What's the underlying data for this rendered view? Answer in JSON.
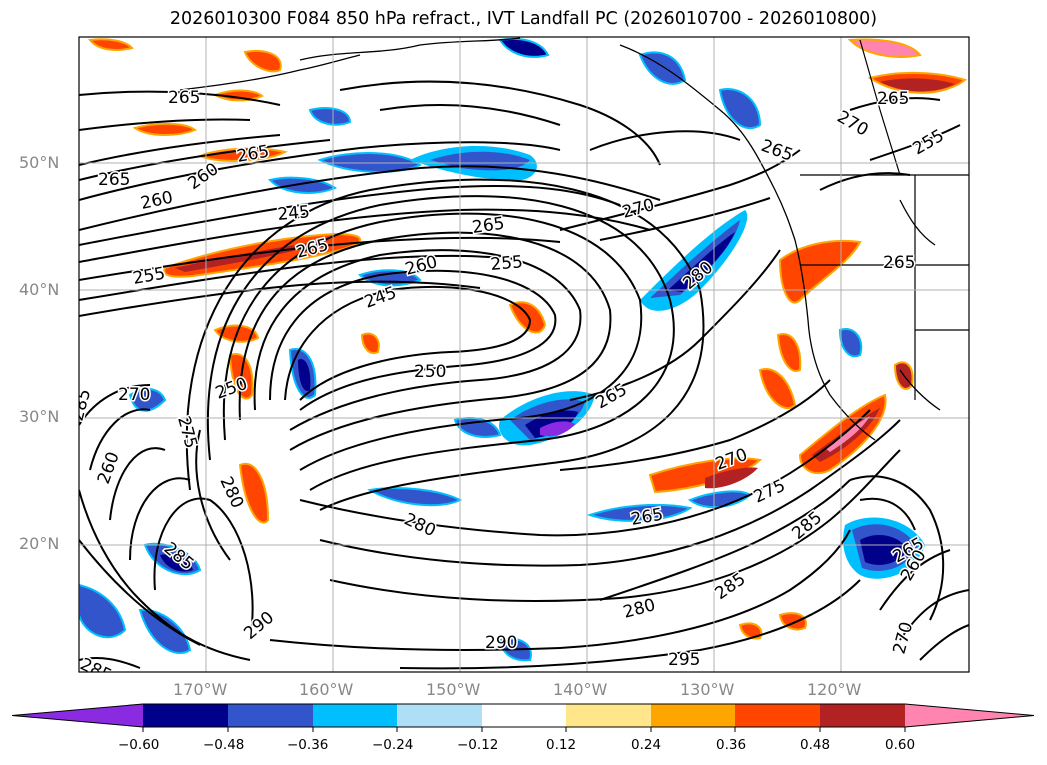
{
  "title": "2026010300 F084 850 hPa refract., IVT Landfall PC (2026010700 - 2026010800)",
  "lat_labels": [
    "50°N",
    "40°N",
    "30°N",
    "20°N"
  ],
  "lon_labels": [
    "170°W",
    "160°W",
    "150°W",
    "140°W",
    "130°W",
    "120°W"
  ],
  "contour_labels": [
    "265",
    "265",
    "260",
    "265",
    "260",
    "265",
    "245",
    "265",
    "270",
    "255",
    "260",
    "255",
    "250",
    "245",
    "280",
    "250",
    "285",
    "275",
    "270",
    "265",
    "285",
    "260",
    "280",
    "275",
    "270",
    "280",
    "265",
    "285",
    "265",
    "260",
    "280",
    "290",
    "290",
    "285",
    "270",
    "295",
    "285",
    "255",
    "265",
    "270",
    "265",
    "265"
  ],
  "colorbar": {
    "tick_labels": [
      "−0.60",
      "−0.48",
      "−0.36",
      "−0.24",
      "−0.12",
      "0.12",
      "0.24",
      "0.36",
      "0.48",
      "0.60"
    ],
    "colors": [
      "#8a2be2",
      "#00008b",
      "#3355cc",
      "#00bfff",
      "#aedff7",
      "#ffffff",
      "#ffe68a",
      "#ffa500",
      "#ff4500",
      "#b22222",
      "#ff85b0"
    ]
  }
}
